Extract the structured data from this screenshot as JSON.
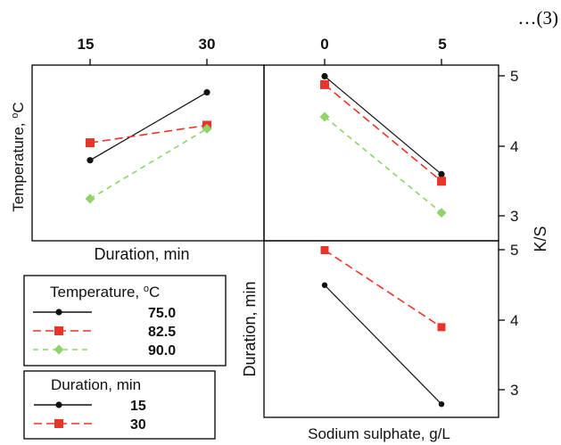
{
  "equation_number": "…(3)",
  "colors": {
    "75": "#111111",
    "82.5": "#e8352a",
    "90": "#8fd36a",
    "15": "#111111",
    "30": "#e8352a"
  },
  "chart_data": [
    {
      "type": "line",
      "panel": "temperature-vs-duration",
      "xlabel": "Duration, min",
      "ylabel": "Temperature, °C",
      "ylabel_main": "Temperature, ",
      "ylabel_sup": "o",
      "ylabel_unit": "C",
      "x_ticks": [
        "15",
        "30"
      ],
      "x": [
        15,
        30
      ],
      "ylim": [
        2.8,
        5.2
      ],
      "series": [
        {
          "name": "75.0",
          "values": [
            3.8,
            4.77
          ]
        },
        {
          "name": "82.5",
          "values": [
            4.05,
            4.3
          ]
        },
        {
          "name": "90.0",
          "values": [
            3.25,
            4.25
          ]
        }
      ]
    },
    {
      "type": "line",
      "panel": "temperature-vs-sodium-sulphate",
      "x_ticks": [
        "0",
        "5"
      ],
      "x": [
        0,
        5
      ],
      "ylim": [
        2.8,
        5.2
      ],
      "y_ticks": [
        "3",
        "4",
        "5"
      ],
      "series": [
        {
          "name": "75.0",
          "values": [
            5.0,
            3.6
          ]
        },
        {
          "name": "82.5",
          "values": [
            4.88,
            3.5
          ]
        },
        {
          "name": "90.0",
          "values": [
            4.42,
            3.05
          ]
        }
      ]
    },
    {
      "type": "line",
      "panel": "duration-vs-sodium-sulphate",
      "xlabel": "Sodium sulphate, g/L",
      "ylabel": "Duration, min",
      "x": [
        0,
        5
      ],
      "ylim": [
        2.8,
        5.2
      ],
      "y_ticks": [
        "3",
        "4",
        "5"
      ],
      "series": [
        {
          "name": "15",
          "values": [
            4.5,
            2.8
          ]
        },
        {
          "name": "30",
          "values": [
            5.0,
            3.9
          ]
        }
      ]
    }
  ],
  "shared_ylabel": "K/S",
  "legend_temperature": {
    "title_main": "Temperature, ",
    "title_sup": "o",
    "title_unit": "C",
    "items": [
      "75.0",
      "82.5",
      "90.0"
    ]
  },
  "legend_duration": {
    "title": "Duration, min",
    "items": [
      "15",
      "30"
    ]
  }
}
